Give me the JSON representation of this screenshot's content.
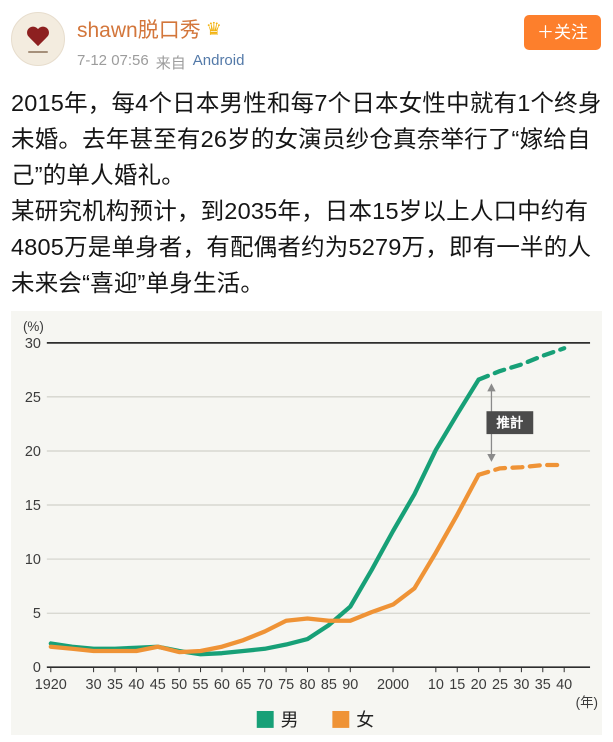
{
  "header": {
    "username": "shawn脱口秀",
    "crown_icon": "♛",
    "timestamp": "7-12 07:56",
    "source_prefix": "来自",
    "source_link": "Android",
    "follow_button": "＋关注"
  },
  "post": {
    "paragraph1": "2015年，每4个日本男性和每7个日本女性中就有1个终身未婚。去年甚至有26岁的女演员纱仓真奈举行了“嫁给自己”的单人婚礼。",
    "paragraph2": "某研究机构预计，到2035年，日本15岁以上人口中约有4805万是单身者，有配偶者约为5279万，即有一半的人未来会“喜迎”单身生活。"
  },
  "chart_data": {
    "type": "line",
    "title": "",
    "y_unit_label": "(%)",
    "x_unit_label": "(年)",
    "estimate_label": "推計",
    "estimate_start_year": 2020,
    "ylim": [
      0,
      30
    ],
    "yticks": [
      0,
      5,
      10,
      15,
      20,
      25,
      30
    ],
    "grid": "horizontal",
    "legend_position": "bottom",
    "x": [
      1920,
      1925,
      1930,
      1935,
      1940,
      1945,
      1950,
      1955,
      1960,
      1965,
      1970,
      1975,
      1980,
      1985,
      1990,
      1995,
      2000,
      2005,
      2010,
      2015,
      2020,
      2025,
      2030,
      2035,
      2040
    ],
    "x_tick_labels": [
      {
        "year": 1920,
        "label": "1920"
      },
      {
        "year": 1930,
        "label": "30"
      },
      {
        "year": 1935,
        "label": "35"
      },
      {
        "year": 1940,
        "label": "40"
      },
      {
        "year": 1945,
        "label": "45"
      },
      {
        "year": 1950,
        "label": "50"
      },
      {
        "year": 1955,
        "label": "55"
      },
      {
        "year": 1960,
        "label": "60"
      },
      {
        "year": 1965,
        "label": "65"
      },
      {
        "year": 1970,
        "label": "70"
      },
      {
        "year": 1975,
        "label": "75"
      },
      {
        "year": 1980,
        "label": "80"
      },
      {
        "year": 1985,
        "label": "85"
      },
      {
        "year": 1990,
        "label": "90"
      },
      {
        "year": 2000,
        "label": "2000"
      },
      {
        "year": 2010,
        "label": "10"
      },
      {
        "year": 2015,
        "label": "15"
      },
      {
        "year": 2020,
        "label": "20"
      },
      {
        "year": 2025,
        "label": "25"
      },
      {
        "year": 2030,
        "label": "30"
      },
      {
        "year": 2035,
        "label": "35"
      },
      {
        "year": 2040,
        "label": "40"
      }
    ],
    "series": [
      {
        "name": "男",
        "color": "#17a077",
        "values": [
          2.2,
          1.9,
          1.7,
          1.7,
          1.8,
          1.9,
          1.5,
          1.2,
          1.3,
          1.5,
          1.7,
          2.1,
          2.6,
          3.9,
          5.6,
          9.0,
          12.6,
          16.0,
          20.1,
          23.4,
          26.6,
          27.4,
          28.0,
          28.8,
          29.5
        ]
      },
      {
        "name": "女",
        "color": "#ef9336",
        "values": [
          1.9,
          1.7,
          1.5,
          1.5,
          1.5,
          1.9,
          1.4,
          1.5,
          1.9,
          2.5,
          3.3,
          4.3,
          4.5,
          4.3,
          4.3,
          5.1,
          5.8,
          7.3,
          10.6,
          14.1,
          17.8,
          18.4,
          18.5,
          18.7,
          18.7
        ]
      }
    ]
  }
}
